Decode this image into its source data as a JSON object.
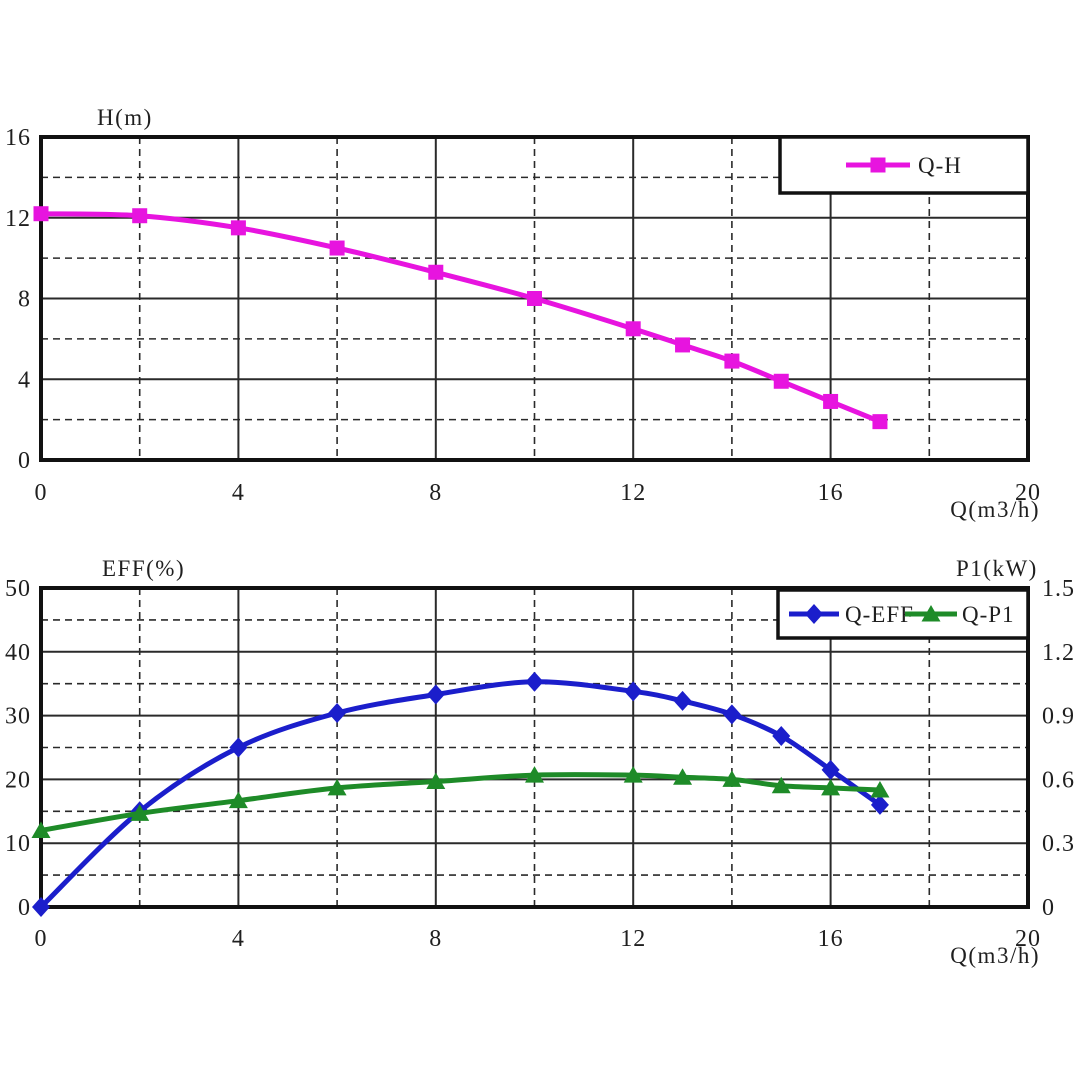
{
  "figure": {
    "background": "#ffffff",
    "text_color": "#1f1f1f",
    "grid_color": "#2a2a2a",
    "frame_color": "#111111"
  },
  "chart_data": [
    {
      "type": "line",
      "title": "H(m)",
      "xlabel": "Q(m3/h)",
      "ylabel": "H(m)",
      "x_range": [
        0,
        20
      ],
      "y_range": [
        0,
        16
      ],
      "x_major_ticks": [
        0,
        4,
        8,
        12,
        16,
        20
      ],
      "x_minor_gridlines": [
        2,
        6,
        10,
        14,
        18
      ],
      "y_major_ticks": [
        0,
        4,
        8,
        12,
        16
      ],
      "y_minor_gridlines": [
        2,
        6,
        10,
        14
      ],
      "grid": "major solid, minor dashed",
      "legend_position": "top-right",
      "legend": [
        {
          "label": "Q-H",
          "color": "#e714df",
          "marker": "square"
        }
      ],
      "series": [
        {
          "name": "Q-H",
          "color": "#e714df",
          "marker": "square",
          "x": [
            0,
            2,
            4,
            6,
            8,
            10,
            12,
            13,
            14,
            15,
            16,
            17
          ],
          "y": [
            12.2,
            12.1,
            11.5,
            10.5,
            9.3,
            8.0,
            6.5,
            5.7,
            4.9,
            3.9,
            2.9,
            1.9
          ]
        }
      ]
    },
    {
      "type": "line",
      "title_left": "EFF(%)",
      "title_right": "P1(kW)",
      "xlabel": "Q(m3/h)",
      "x_range": [
        0,
        20
      ],
      "y_left_range": [
        0,
        50
      ],
      "y_right_range": [
        0,
        1.5
      ],
      "x_major_ticks": [
        0,
        4,
        8,
        12,
        16,
        20
      ],
      "x_minor_gridlines": [
        2,
        6,
        10,
        14,
        18
      ],
      "y_left_ticks": [
        0,
        10,
        20,
        30,
        40,
        50
      ],
      "y_left_minor_gridlines": [
        5,
        15,
        25,
        35,
        45
      ],
      "y_right_tick_labels": [
        "0",
        "0.3",
        "0.6",
        "0.9",
        "1.2",
        "1.5"
      ],
      "grid": "major solid, minor dashed",
      "legend_position": "top-right",
      "legend": [
        {
          "label": "Q-EFF",
          "color": "#1b1ecb",
          "marker": "diamond"
        },
        {
          "label": "Q-P1",
          "color": "#1e8b28",
          "marker": "triangle-up"
        }
      ],
      "series": [
        {
          "name": "Q-EFF",
          "axis": "left",
          "color": "#1b1ecb",
          "marker": "diamond",
          "x": [
            0,
            2,
            4,
            6,
            8,
            10,
            12,
            13,
            14,
            15,
            16,
            17
          ],
          "y": [
            0,
            15,
            25,
            30.4,
            33.3,
            35.3,
            33.8,
            32.3,
            30.2,
            26.8,
            21.5,
            16.0
          ]
        },
        {
          "name": "Q-P1",
          "axis": "right",
          "color": "#1e8b28",
          "marker": "triangle-up",
          "x": [
            0,
            2,
            4,
            6,
            8,
            10,
            12,
            13,
            14,
            15,
            16,
            17
          ],
          "y": [
            0.36,
            0.44,
            0.5,
            0.56,
            0.59,
            0.62,
            0.62,
            0.61,
            0.6,
            0.57,
            0.56,
            0.55
          ]
        }
      ]
    }
  ]
}
